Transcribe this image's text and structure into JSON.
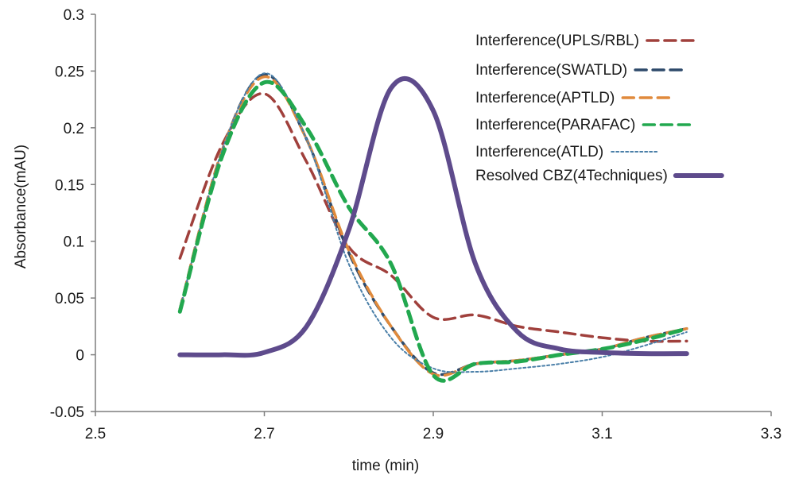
{
  "chart_data": {
    "type": "line",
    "xlabel": "time (min)",
    "ylabel": "Absorbance(mAU)",
    "xlim": [
      2.5,
      3.3
    ],
    "ylim": [
      -0.05,
      0.3
    ],
    "x_ticks": [
      "2.5",
      "2.7",
      "2.9",
      "3.1",
      "3.3"
    ],
    "y_ticks": [
      "-0.05",
      "0",
      "0.05",
      "0.1",
      "0.15",
      "0.2",
      "0.25",
      "0.3"
    ],
    "grid": false,
    "legend_position": "top-right",
    "series": [
      {
        "name": "Interference(UPLS/RBL)",
        "color": "#a0403c",
        "style": "dashed",
        "x": [
          2.6,
          2.65,
          2.7,
          2.75,
          2.8,
          2.85,
          2.9,
          2.95,
          3.0,
          3.05,
          3.1,
          3.15,
          3.2
        ],
        "y": [
          0.085,
          0.185,
          0.23,
          0.17,
          0.095,
          0.07,
          0.033,
          0.035,
          0.025,
          0.02,
          0.015,
          0.012,
          0.012
        ]
      },
      {
        "name": "Interference(SWATLD)",
        "color": "#2e4a6b",
        "style": "dashed",
        "x": [
          2.6,
          2.65,
          2.7,
          2.75,
          2.8,
          2.85,
          2.9,
          2.95,
          3.0,
          3.05,
          3.1,
          3.15,
          3.2
        ],
        "y": [
          0.04,
          0.18,
          0.247,
          0.19,
          0.09,
          0.025,
          -0.016,
          -0.008,
          -0.005,
          0.0,
          0.005,
          0.015,
          0.023
        ]
      },
      {
        "name": "Interference(APTLD)",
        "color": "#e08a3c",
        "style": "dashed",
        "x": [
          2.6,
          2.65,
          2.7,
          2.75,
          2.8,
          2.85,
          2.9,
          2.95,
          3.0,
          3.05,
          3.1,
          3.15,
          3.2
        ],
        "y": [
          0.04,
          0.18,
          0.245,
          0.19,
          0.092,
          0.025,
          -0.017,
          -0.008,
          -0.005,
          0.0,
          0.005,
          0.015,
          0.023
        ]
      },
      {
        "name": "Interference(PARAFAC)",
        "color": "#22a84f",
        "style": "dashed",
        "x": [
          2.6,
          2.65,
          2.7,
          2.75,
          2.8,
          2.85,
          2.9,
          2.95,
          3.0,
          3.05,
          3.1,
          3.15,
          3.2
        ],
        "y": [
          0.038,
          0.175,
          0.24,
          0.2,
          0.13,
          0.08,
          -0.018,
          -0.008,
          -0.006,
          0.0,
          0.005,
          0.013,
          0.023
        ]
      },
      {
        "name": "Interference(ATLD)",
        "color": "#4a7fa8",
        "style": "dotted",
        "x": [
          2.6,
          2.65,
          2.7,
          2.75,
          2.8,
          2.85,
          2.9,
          2.95,
          3.0,
          3.05,
          3.1,
          3.15,
          3.2
        ],
        "y": [
          0.04,
          0.18,
          0.248,
          0.19,
          0.08,
          0.015,
          -0.012,
          -0.015,
          -0.012,
          -0.008,
          -0.002,
          0.008,
          0.02
        ]
      },
      {
        "name": "Resolved CBZ(4Techniques)",
        "color": "#5e4b8c",
        "style": "solid",
        "x": [
          2.6,
          2.65,
          2.7,
          2.75,
          2.8,
          2.85,
          2.9,
          2.95,
          3.0,
          3.05,
          3.1,
          3.15,
          3.2
        ],
        "y": [
          0.0,
          0.0,
          0.002,
          0.025,
          0.11,
          0.235,
          0.215,
          0.08,
          0.02,
          0.005,
          0.002,
          0.001,
          0.001
        ]
      }
    ]
  }
}
